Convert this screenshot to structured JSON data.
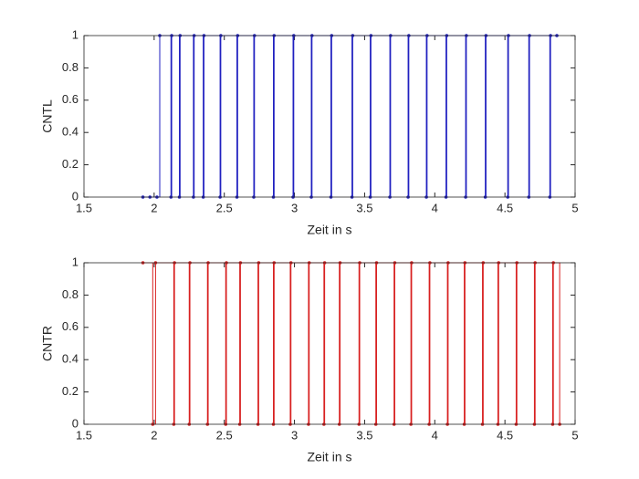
{
  "chart_data": [
    {
      "type": "line",
      "step": true,
      "markers": true,
      "xlabel": "Zeit in s",
      "ylabel": "CNTL",
      "xlim": [
        1.5,
        5
      ],
      "ylim": [
        0,
        1
      ],
      "xticks": [
        1.5,
        2,
        2.5,
        3,
        3.5,
        4,
        4.5,
        5
      ],
      "yticks": [
        0,
        0.2,
        0.4,
        0.6,
        0.8,
        1
      ],
      "series": [
        {
          "color": "#2020c0",
          "x": [
            1.92,
            1.97,
            2.02,
            2.04,
            2.12,
            2.125,
            2.18,
            2.185,
            2.28,
            2.285,
            2.35,
            2.355,
            2.47,
            2.475,
            2.59,
            2.595,
            2.71,
            2.715,
            2.85,
            2.855,
            2.99,
            2.995,
            3.12,
            3.125,
            3.26,
            3.265,
            3.41,
            3.415,
            3.54,
            3.545,
            3.68,
            3.685,
            3.81,
            3.815,
            3.94,
            3.945,
            4.08,
            4.085,
            4.22,
            4.225,
            4.36,
            4.365,
            4.52,
            4.525,
            4.67,
            4.675,
            4.82,
            4.825,
            4.87
          ],
          "values": [
            0,
            0,
            0,
            1,
            0,
            1,
            0,
            1,
            0,
            1,
            0,
            1,
            0,
            1,
            0,
            1,
            0,
            1,
            0,
            1,
            0,
            1,
            0,
            1,
            0,
            1,
            0,
            1,
            0,
            1,
            0,
            1,
            0,
            1,
            0,
            1,
            0,
            1,
            0,
            1,
            0,
            1,
            0,
            1,
            0,
            1,
            0,
            1,
            1
          ]
        }
      ]
    },
    {
      "type": "line",
      "step": true,
      "markers": true,
      "xlabel": "Zeit in s",
      "ylabel": "CNTR",
      "xlim": [
        1.5,
        5
      ],
      "ylim": [
        0,
        1
      ],
      "xticks": [
        1.5,
        2,
        2.5,
        3,
        3.5,
        4,
        4.5,
        5
      ],
      "yticks": [
        0,
        0.2,
        0.4,
        0.6,
        0.8,
        1
      ],
      "series": [
        {
          "color": "#d82020",
          "x": [
            1.92,
            1.99,
            2.01,
            2.14,
            2.145,
            2.25,
            2.255,
            2.38,
            2.385,
            2.51,
            2.515,
            2.61,
            2.615,
            2.74,
            2.745,
            2.85,
            2.855,
            2.97,
            2.975,
            3.1,
            3.105,
            3.21,
            3.215,
            3.32,
            3.325,
            3.46,
            3.465,
            3.58,
            3.585,
            3.71,
            3.715,
            3.83,
            3.835,
            3.96,
            3.965,
            4.09,
            4.095,
            4.21,
            4.215,
            4.34,
            4.345,
            4.45,
            4.455,
            4.58,
            4.585,
            4.71,
            4.715,
            4.84,
            4.845,
            4.89
          ],
          "values": [
            1,
            0,
            1,
            0,
            1,
            0,
            1,
            0,
            1,
            0,
            1,
            0,
            1,
            0,
            1,
            0,
            1,
            0,
            1,
            0,
            1,
            0,
            1,
            0,
            1,
            0,
            1,
            0,
            1,
            0,
            1,
            0,
            1,
            0,
            1,
            0,
            1,
            0,
            1,
            0,
            1,
            0,
            1,
            0,
            1,
            0,
            1,
            0,
            1,
            0
          ]
        }
      ]
    }
  ]
}
